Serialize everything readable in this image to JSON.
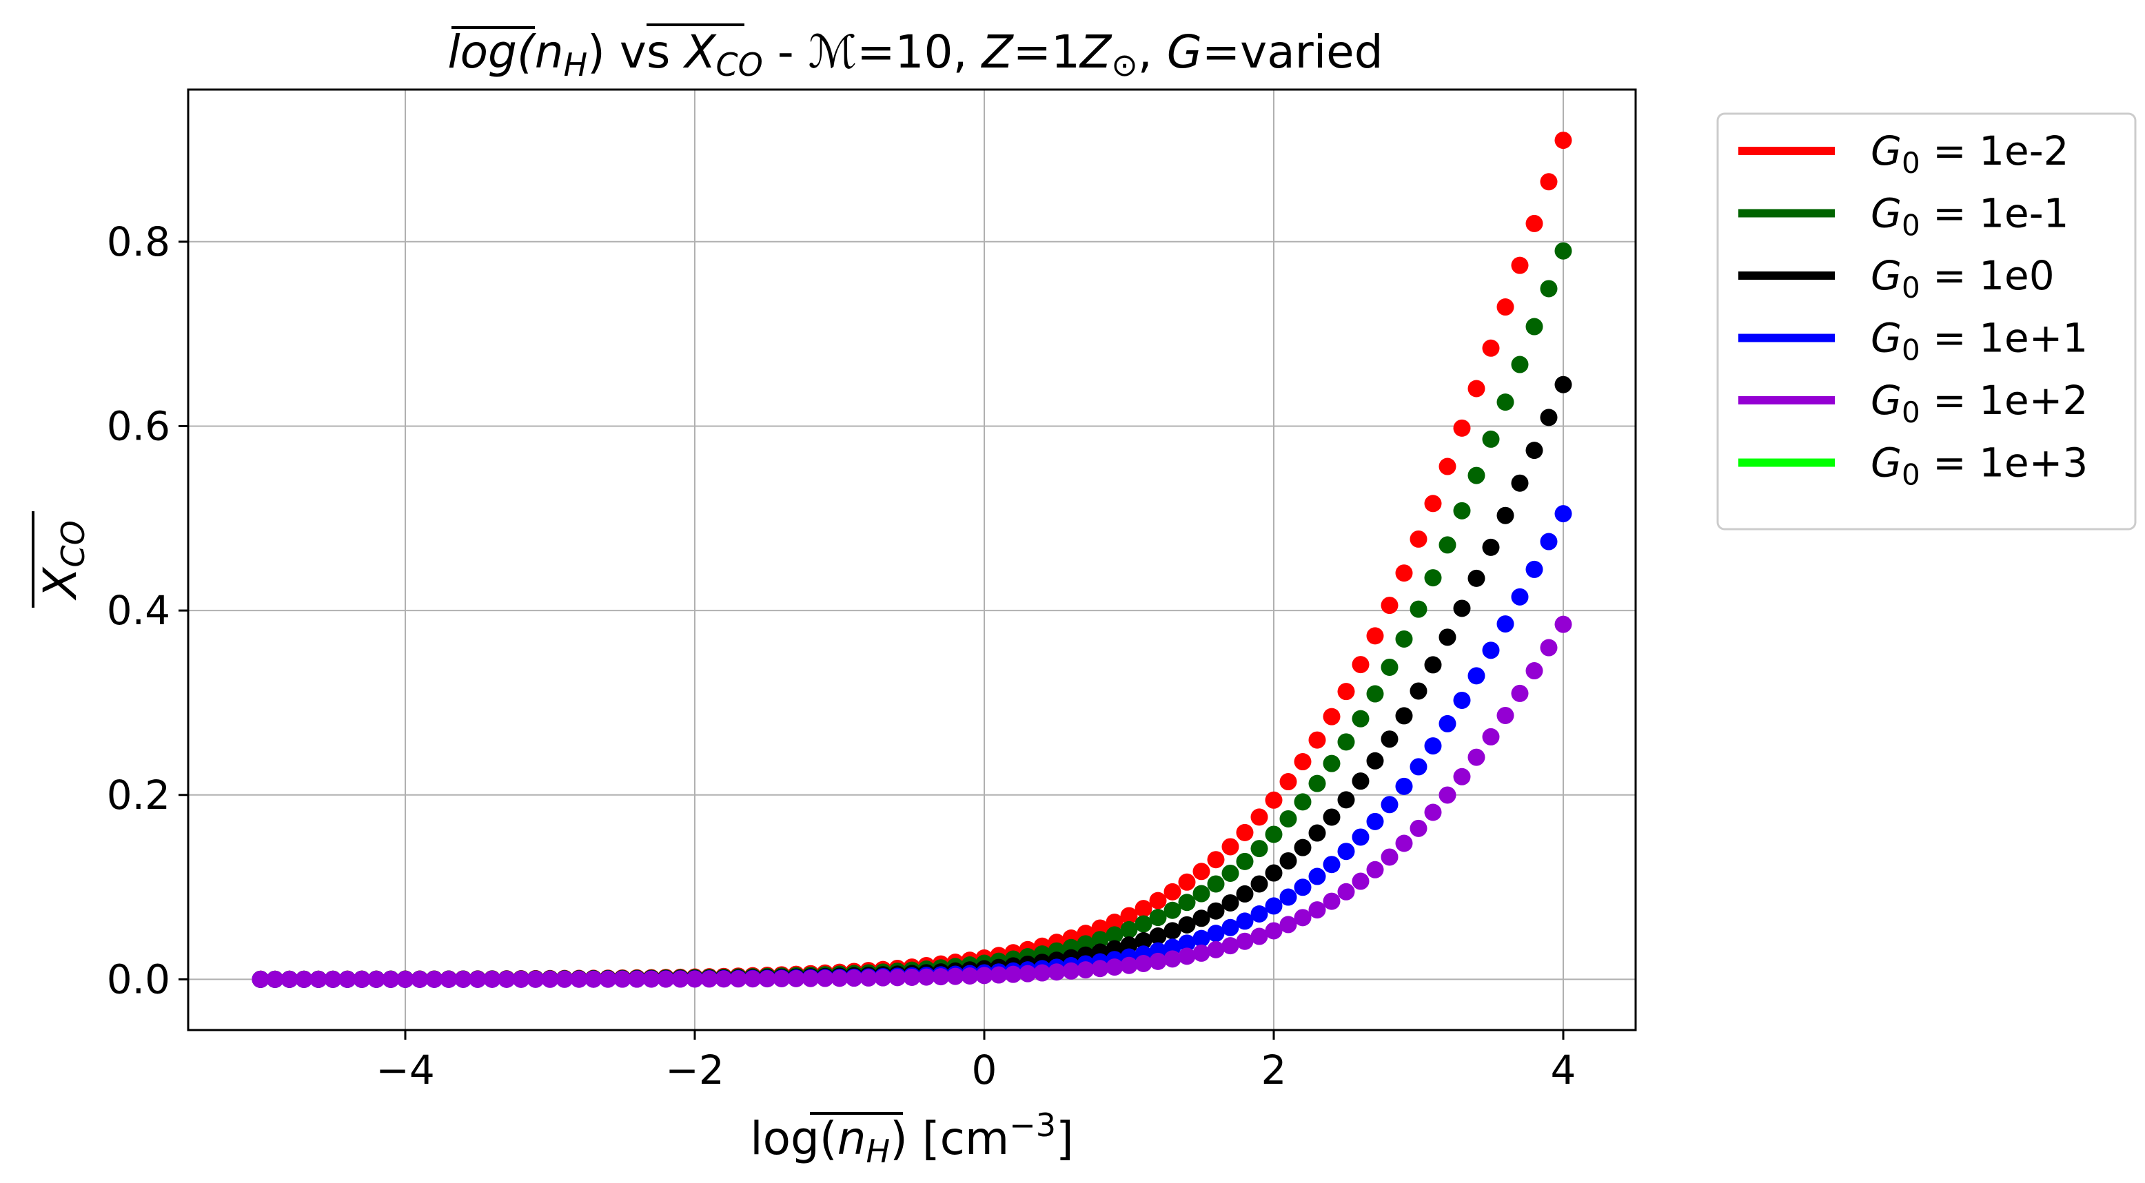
{
  "chart_data": {
    "type": "scatter",
    "title": {
      "pre": "log(",
      "n": "n",
      "nsub": "H",
      "mid": ") vs ",
      "x": "X",
      "xsub": "CO",
      "dash": " - ",
      "M": "ℳ",
      "mval": "=10, ",
      "Z": "Z",
      "zval": "=1",
      "Zs": "Z",
      "zsun": "⊙",
      "comma": ", ",
      "G": "G",
      "gval": "=varied"
    },
    "xlabel": {
      "pre": "log(",
      "n": "n",
      "sub": "H",
      "post": ") [cm",
      "sup": "−3",
      "end": "]"
    },
    "ylabel": {
      "main": "X",
      "sub": "CO"
    },
    "xlim": [
      -5.5,
      4.5
    ],
    "ylim": [
      -0.055,
      0.965
    ],
    "xticks": [
      -4,
      -2,
      0,
      2,
      4
    ],
    "xtick_labels": [
      "−4",
      "−2",
      "0",
      "2",
      "4"
    ],
    "yticks": [
      0.0,
      0.2,
      0.4,
      0.6,
      0.8
    ],
    "ytick_labels": [
      "0.0",
      "0.2",
      "0.4",
      "0.6",
      "0.8"
    ],
    "grid": true,
    "legend_position": "outside-right",
    "x_range": [
      -5,
      4
    ],
    "points_per_series": 91,
    "series": [
      {
        "name_pre": "G",
        "name_sub": "0",
        "name_post": " = 1e-2",
        "color": "#ff0000",
        "center": 3.78,
        "rate": 1.12,
        "ymax": 0.91
      },
      {
        "name_pre": "G",
        "name_sub": "0",
        "name_post": " = 1e-1",
        "color": "#006400",
        "center": 3.82,
        "rate": 1.15,
        "ymax": 0.79
      },
      {
        "name_pre": "G",
        "name_sub": "0",
        "name_post": " = 1e0",
        "color": "#000000",
        "center": 3.86,
        "rate": 1.2,
        "ymax": 0.645
      },
      {
        "name_pre": "G",
        "name_sub": "0",
        "name_post": " = 1e+1",
        "color": "#0000ff",
        "center": 3.93,
        "rate": 1.25,
        "ymax": 0.505
      },
      {
        "name_pre": "G",
        "name_sub": "0",
        "name_post": " = 1e+2",
        "color": "#9400d3",
        "center": 4.02,
        "rate": 1.3,
        "ymax": 0.385
      },
      {
        "name_pre": "G",
        "name_sub": "0",
        "name_post": " = 1e+3",
        "color": "#00ff00",
        "center": null,
        "rate": null,
        "ymax": null
      }
    ]
  }
}
